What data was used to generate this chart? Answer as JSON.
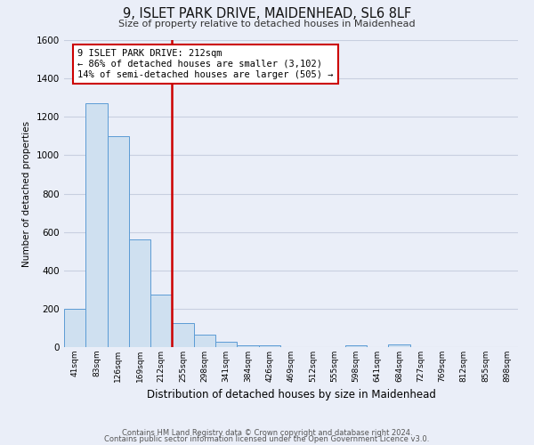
{
  "title": "9, ISLET PARK DRIVE, MAIDENHEAD, SL6 8LF",
  "subtitle": "Size of property relative to detached houses in Maidenhead",
  "xlabel": "Distribution of detached houses by size in Maidenhead",
  "ylabel": "Number of detached properties",
  "bin_labels": [
    "41sqm",
    "83sqm",
    "126sqm",
    "169sqm",
    "212sqm",
    "255sqm",
    "298sqm",
    "341sqm",
    "384sqm",
    "426sqm",
    "469sqm",
    "512sqm",
    "555sqm",
    "598sqm",
    "641sqm",
    "684sqm",
    "727sqm",
    "769sqm",
    "812sqm",
    "855sqm",
    "898sqm"
  ],
  "bar_heights": [
    200,
    1270,
    1100,
    560,
    275,
    125,
    63,
    30,
    10,
    10,
    0,
    0,
    0,
    10,
    0,
    15,
    0,
    0,
    0,
    0,
    0
  ],
  "bar_color": "#cfe0f0",
  "bar_edge_color": "#5b9bd5",
  "vline_color": "#cc0000",
  "annotation_text": "9 ISLET PARK DRIVE: 212sqm\n← 86% of detached houses are smaller (3,102)\n14% of semi-detached houses are larger (505) →",
  "annotation_box_color": "#ffffff",
  "annotation_box_edge": "#cc0000",
  "ylim": [
    0,
    1600
  ],
  "yticks": [
    0,
    200,
    400,
    600,
    800,
    1000,
    1200,
    1400,
    1600
  ],
  "bg_color": "#eaeef8",
  "grid_color": "#c8cfe0",
  "footer1": "Contains HM Land Registry data © Crown copyright and database right 2024.",
  "footer2": "Contains public sector information licensed under the Open Government Licence v3.0."
}
